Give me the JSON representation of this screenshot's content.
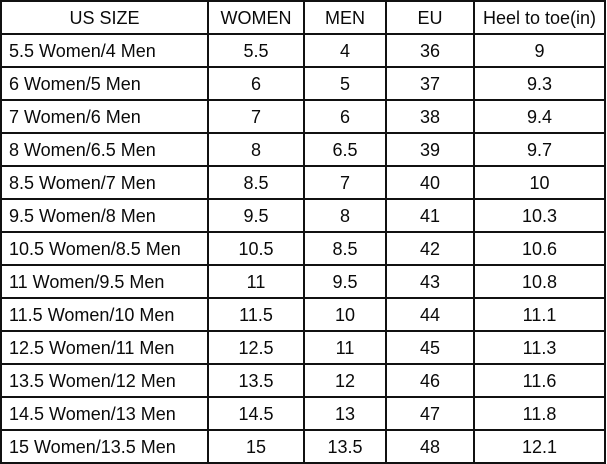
{
  "page": {
    "background_color": "#ffffff",
    "border_color": "#111111",
    "text_color": "#0a0a0a"
  },
  "chart_data": {
    "type": "table",
    "columns": [
      "US SIZE",
      "WOMEN",
      "MEN",
      "EU",
      "Heel to toe(in)"
    ],
    "rows": [
      [
        "5.5 Women/4 Men",
        "5.5",
        "4",
        "36",
        "9"
      ],
      [
        "6 Women/5 Men",
        "6",
        "5",
        "37",
        "9.3"
      ],
      [
        "7 Women/6 Men",
        "7",
        "6",
        "38",
        "9.4"
      ],
      [
        "8 Women/6.5 Men",
        "8",
        "6.5",
        "39",
        "9.7"
      ],
      [
        "8.5 Women/7 Men",
        "8.5",
        "7",
        "40",
        "10"
      ],
      [
        "9.5 Women/8 Men",
        "9.5",
        "8",
        "41",
        "10.3"
      ],
      [
        "10.5 Women/8.5 Men",
        "10.5",
        "8.5",
        "42",
        "10.6"
      ],
      [
        "11 Women/9.5 Men",
        "11",
        "9.5",
        "43",
        "10.8"
      ],
      [
        "11.5 Women/10 Men",
        "11.5",
        "10",
        "44",
        "11.1"
      ],
      [
        "12.5 Women/11 Men",
        "12.5",
        "11",
        "45",
        "11.3"
      ],
      [
        "13.5 Women/12 Men",
        "13.5",
        "12",
        "46",
        "11.6"
      ],
      [
        "14.5 Women/13 Men",
        "14.5",
        "13",
        "47",
        "11.8"
      ],
      [
        "15 Women/13.5 Men",
        "15",
        "13.5",
        "48",
        "12.1"
      ]
    ]
  }
}
